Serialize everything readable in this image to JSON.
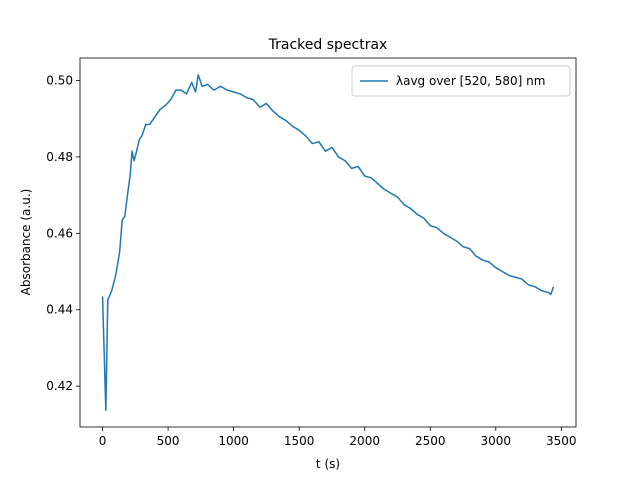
{
  "chart_data": {
    "type": "line",
    "title": "Tracked spectrax",
    "xlabel": "t (s)",
    "ylabel": "Absorbance (a.u.)",
    "x": [
      0,
      25,
      40,
      70,
      100,
      130,
      150,
      170,
      190,
      210,
      225,
      240,
      260,
      280,
      300,
      330,
      360,
      400,
      440,
      480,
      520,
      560,
      600,
      640,
      680,
      710,
      730,
      760,
      800,
      850,
      900,
      950,
      1000,
      1050,
      1100,
      1150,
      1200,
      1250,
      1300,
      1350,
      1400,
      1450,
      1500,
      1550,
      1600,
      1650,
      1700,
      1750,
      1800,
      1850,
      1900,
      1950,
      2000,
      2050,
      2100,
      2150,
      2200,
      2250,
      2300,
      2350,
      2400,
      2450,
      2500,
      2550,
      2600,
      2650,
      2700,
      2750,
      2800,
      2850,
      2900,
      2950,
      3000,
      3050,
      3100,
      3150,
      3200,
      3250,
      3300,
      3350,
      3400,
      3420,
      3440
    ],
    "series": [
      {
        "name": "λavg over [520, 580] nm",
        "color": "#1f77b4",
        "values": [
          0.4435,
          0.4137,
          0.4425,
          0.445,
          0.449,
          0.455,
          0.4635,
          0.4645,
          0.47,
          0.475,
          0.4815,
          0.479,
          0.4815,
          0.4845,
          0.4855,
          0.4885,
          0.4885,
          0.4905,
          0.4925,
          0.4935,
          0.495,
          0.4975,
          0.4975,
          0.4965,
          0.4995,
          0.497,
          0.5015,
          0.4985,
          0.499,
          0.4975,
          0.4985,
          0.4975,
          0.497,
          0.4965,
          0.4955,
          0.495,
          0.493,
          0.494,
          0.492,
          0.4905,
          0.4895,
          0.488,
          0.487,
          0.4855,
          0.4835,
          0.484,
          0.4815,
          0.4825,
          0.48,
          0.479,
          0.477,
          0.4775,
          0.475,
          0.4745,
          0.473,
          0.4715,
          0.4705,
          0.4695,
          0.4675,
          0.4665,
          0.465,
          0.464,
          0.462,
          0.4615,
          0.46,
          0.459,
          0.458,
          0.4565,
          0.456,
          0.454,
          0.453,
          0.4525,
          0.451,
          0.45,
          0.449,
          0.4485,
          0.448,
          0.4465,
          0.446,
          0.445,
          0.4445,
          0.444,
          0.446
        ]
      }
    ],
    "xlim": [
      -172,
      3612
    ],
    "ylim": [
      0.4093,
      0.5059
    ],
    "xticks": [
      0,
      500,
      1000,
      1500,
      2000,
      2500,
      3000,
      3500
    ],
    "yticks": [
      0.42,
      0.44,
      0.46,
      0.48,
      {
        "value": 0.5,
        "label": "0.50"
      }
    ],
    "grid": false,
    "legend": "upper right"
  }
}
